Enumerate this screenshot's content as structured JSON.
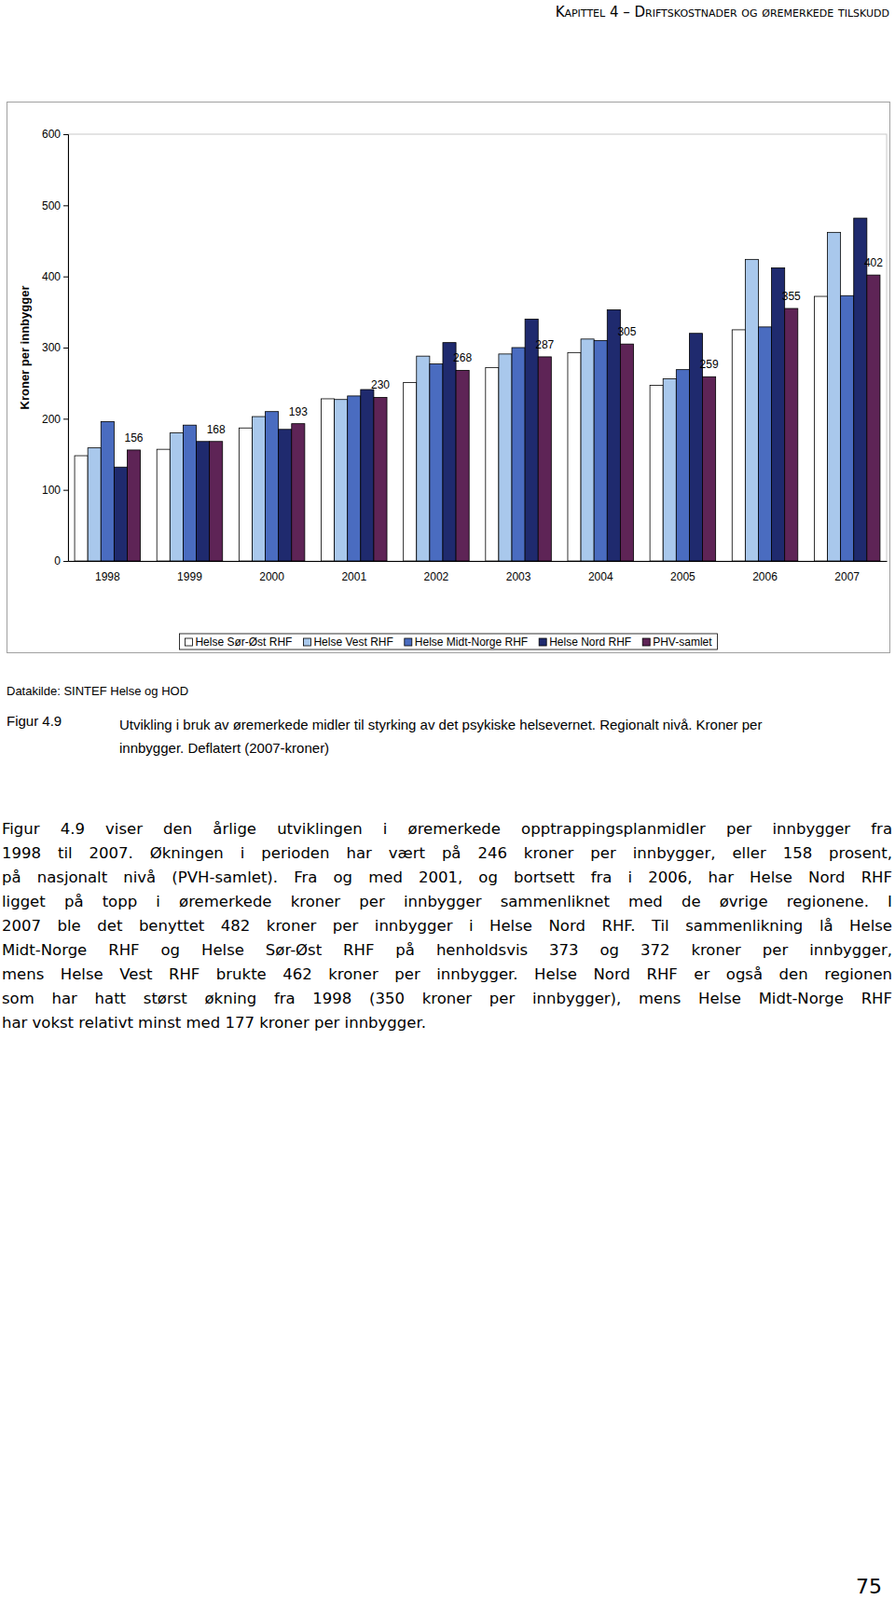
{
  "header": "Kapittel 4 – Driftskostnader og øremerkede tilskudd",
  "chart_data": {
    "type": "bar",
    "ylabel": "Kroner per innbygger",
    "categories": [
      "1998",
      "1999",
      "2000",
      "2001",
      "2002",
      "2003",
      "2004",
      "2005",
      "2006",
      "2007"
    ],
    "series": [
      {
        "name": "Helse Sør-Øst RHF",
        "color": "#ffffff",
        "values": [
          148,
          157,
          187,
          228,
          251,
          272,
          293,
          247,
          325,
          372
        ]
      },
      {
        "name": "Helse Vest RHF",
        "color": "#a9c8ec",
        "values": [
          159,
          180,
          203,
          227,
          288,
          291,
          312,
          256,
          424,
          462
        ]
      },
      {
        "name": "Helse Midt-Norge RHF",
        "color": "#4a6cc0",
        "values": [
          196,
          191,
          210,
          232,
          277,
          300,
          310,
          269,
          329,
          373
        ]
      },
      {
        "name": "Helse Nord RHF",
        "color": "#1f2a6e",
        "values": [
          132,
          168,
          185,
          241,
          307,
          340,
          353,
          320,
          412,
          482
        ]
      },
      {
        "name": "PHV-samlet",
        "color": "#5e2456",
        "data_labels": true,
        "values": [
          156,
          168,
          193,
          230,
          268,
          287,
          305,
          259,
          355,
          402
        ]
      }
    ],
    "ylim": [
      0,
      600
    ],
    "yticks": [
      0,
      100,
      200,
      300,
      400,
      500,
      600
    ],
    "grid": false,
    "legend": "bottom"
  },
  "source": "Datakilde: SINTEF Helse og HOD",
  "caption": {
    "label": "Figur 4.9",
    "lines": [
      "Utvikling i bruk av øremerkede midler til styrking av det psykiske helsevernet. Regionalt nivå. Kroner per",
      "innbygger. Deflatert (2007-kroner)"
    ]
  },
  "body": [
    "Figur 4.9 viser den årlige utviklingen i øremerkede opptrappingsplanmidler per innbygger fra",
    "1998 til 2007. Økningen i perioden har vært på 246 kroner per innbygger, eller 158 prosent,",
    "på nasjonalt nivå (PVH-samlet). Fra og med 2001, og bortsett fra i 2006, har Helse Nord RHF",
    "ligget på topp i øremerkede kroner per innbygger sammenliknet med de øvrige regionene. I",
    "2007 ble det benyttet 482 kroner per innbygger i Helse Nord RHF. Til sammenlikning lå Helse",
    "Midt-Norge RHF og Helse Sør-Øst RHF på henholdsvis 373 og 372 kroner per innbygger,",
    "mens Helse Vest RHF brukte 462 kroner per innbygger. Helse Nord RHF er også den regionen",
    "som har hatt størst økning fra 1998 (350 kroner per innbygger), mens Helse Midt-Norge RHF",
    "har vokst relativt minst med 177 kroner per innbygger."
  ],
  "page_number": "75"
}
